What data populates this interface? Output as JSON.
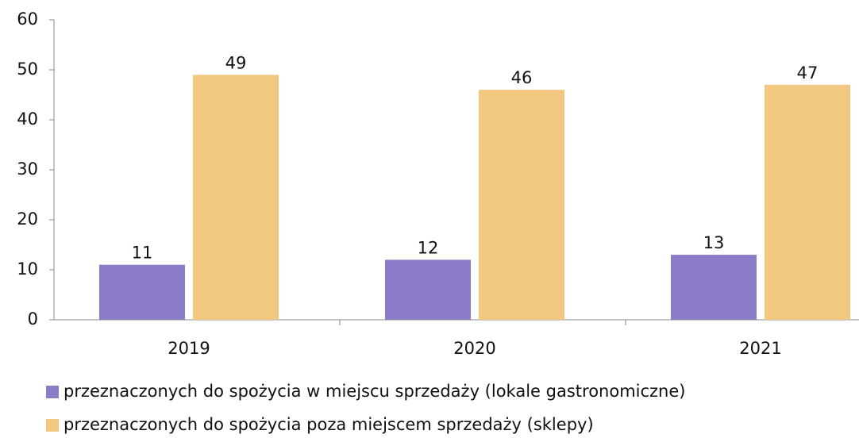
{
  "chart_data": {
    "type": "bar",
    "categories": [
      "2019",
      "2020",
      "2021"
    ],
    "series": [
      {
        "name": "przeznaczonych do spożycia w miejscu sprzedaży (lokale gastronomiczne)",
        "color": "#8c7bc6",
        "values": [
          11,
          12,
          13
        ]
      },
      {
        "name": "przeznaczonych do spożycia poza miejscem sprzedaży (sklepy)",
        "color": "#f2c77f",
        "values": [
          49,
          46,
          47
        ]
      }
    ],
    "ylim": [
      0,
      60
    ],
    "yticks": [
      0,
      10,
      20,
      30,
      40,
      50,
      60
    ],
    "grid": false,
    "legend": "bottom"
  }
}
